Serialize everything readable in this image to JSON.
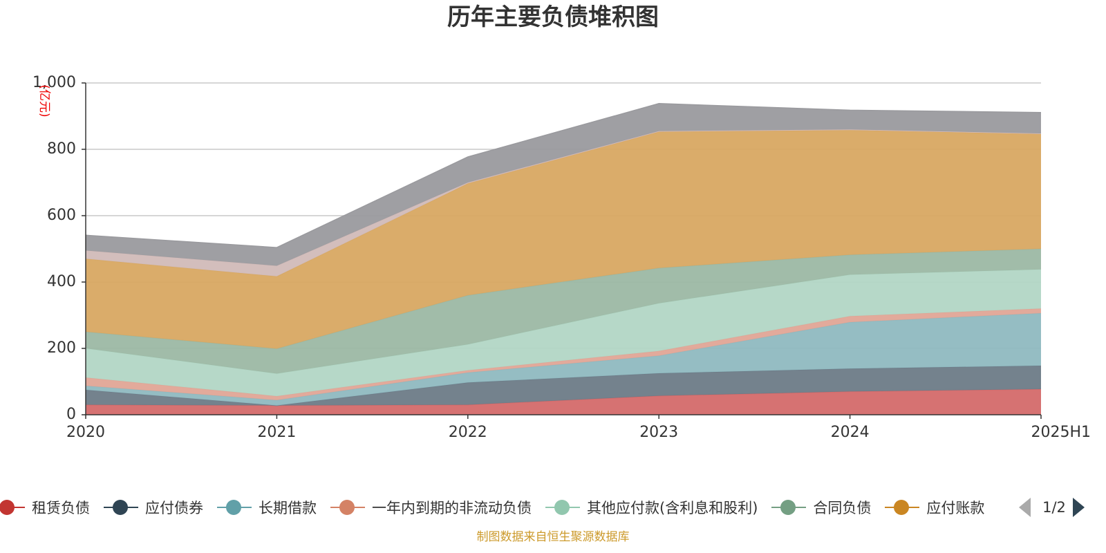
{
  "chart_data": {
    "type": "area",
    "stacked": true,
    "title": "历年主要负债堆积图",
    "ylabel": "(亿元)",
    "ylim": [
      0,
      1000
    ],
    "yticks": [
      0,
      200,
      400,
      600,
      800,
      1000
    ],
    "ytick_labels": [
      "0",
      "200",
      "400",
      "600",
      "800",
      "1,000"
    ],
    "grid": true,
    "legend_placement": "bottom",
    "categories": [
      "2020",
      "2021",
      "2022",
      "2023",
      "2024",
      "2025H1"
    ],
    "series": [
      {
        "name": "租赁负债",
        "color": "#d46a6a",
        "values": [
          30,
          28,
          30,
          57,
          70,
          77
        ]
      },
      {
        "name": "应付债券",
        "color": "#6d7b87",
        "values": [
          45,
          0,
          67,
          68,
          69,
          71
        ]
      },
      {
        "name": "长期借款",
        "color": "#8fb9c0",
        "values": [
          12,
          16,
          30,
          53,
          140,
          158
        ]
      },
      {
        "name": "一年内到期的非流动负债",
        "color": "#e0a596",
        "values": [
          25,
          12,
          7,
          14,
          18,
          14
        ]
      },
      {
        "name": "其他应付款(含利息和股利)",
        "color": "#b2d6c5",
        "values": [
          88,
          68,
          78,
          144,
          125,
          118
        ]
      },
      {
        "name": "合同负债",
        "color": "#9cb8a4",
        "values": [
          50,
          75,
          148,
          106,
          60,
          62
        ]
      },
      {
        "name": "应付账款",
        "color": "#d8a862",
        "values": [
          220,
          218,
          337,
          411,
          376,
          346
        ]
      },
      {
        "name": "",
        "color": "#d1bab8",
        "values": [
          25,
          32,
          3,
          2,
          2,
          2
        ]
      },
      {
        "name": "",
        "color": "#9a9a9e",
        "values": [
          46,
          55,
          77,
          83,
          58,
          63
        ]
      }
    ]
  },
  "legend": {
    "items": [
      {
        "label": "租赁负债",
        "color": "#c23531"
      },
      {
        "label": "应付债券",
        "color": "#2f4554"
      },
      {
        "label": "长期借款",
        "color": "#61a0a8"
      },
      {
        "label": "一年内到期的非流动负债",
        "color": "#d48265"
      },
      {
        "label": "其他应付款(含利息和股利)",
        "color": "#91c7ae"
      },
      {
        "label": "合同负债",
        "color": "#749f83"
      },
      {
        "label": "应付账款",
        "color": "#ca8622"
      }
    ],
    "page_info": "1/2"
  },
  "source_note": "制图数据来自恒生聚源数据库"
}
